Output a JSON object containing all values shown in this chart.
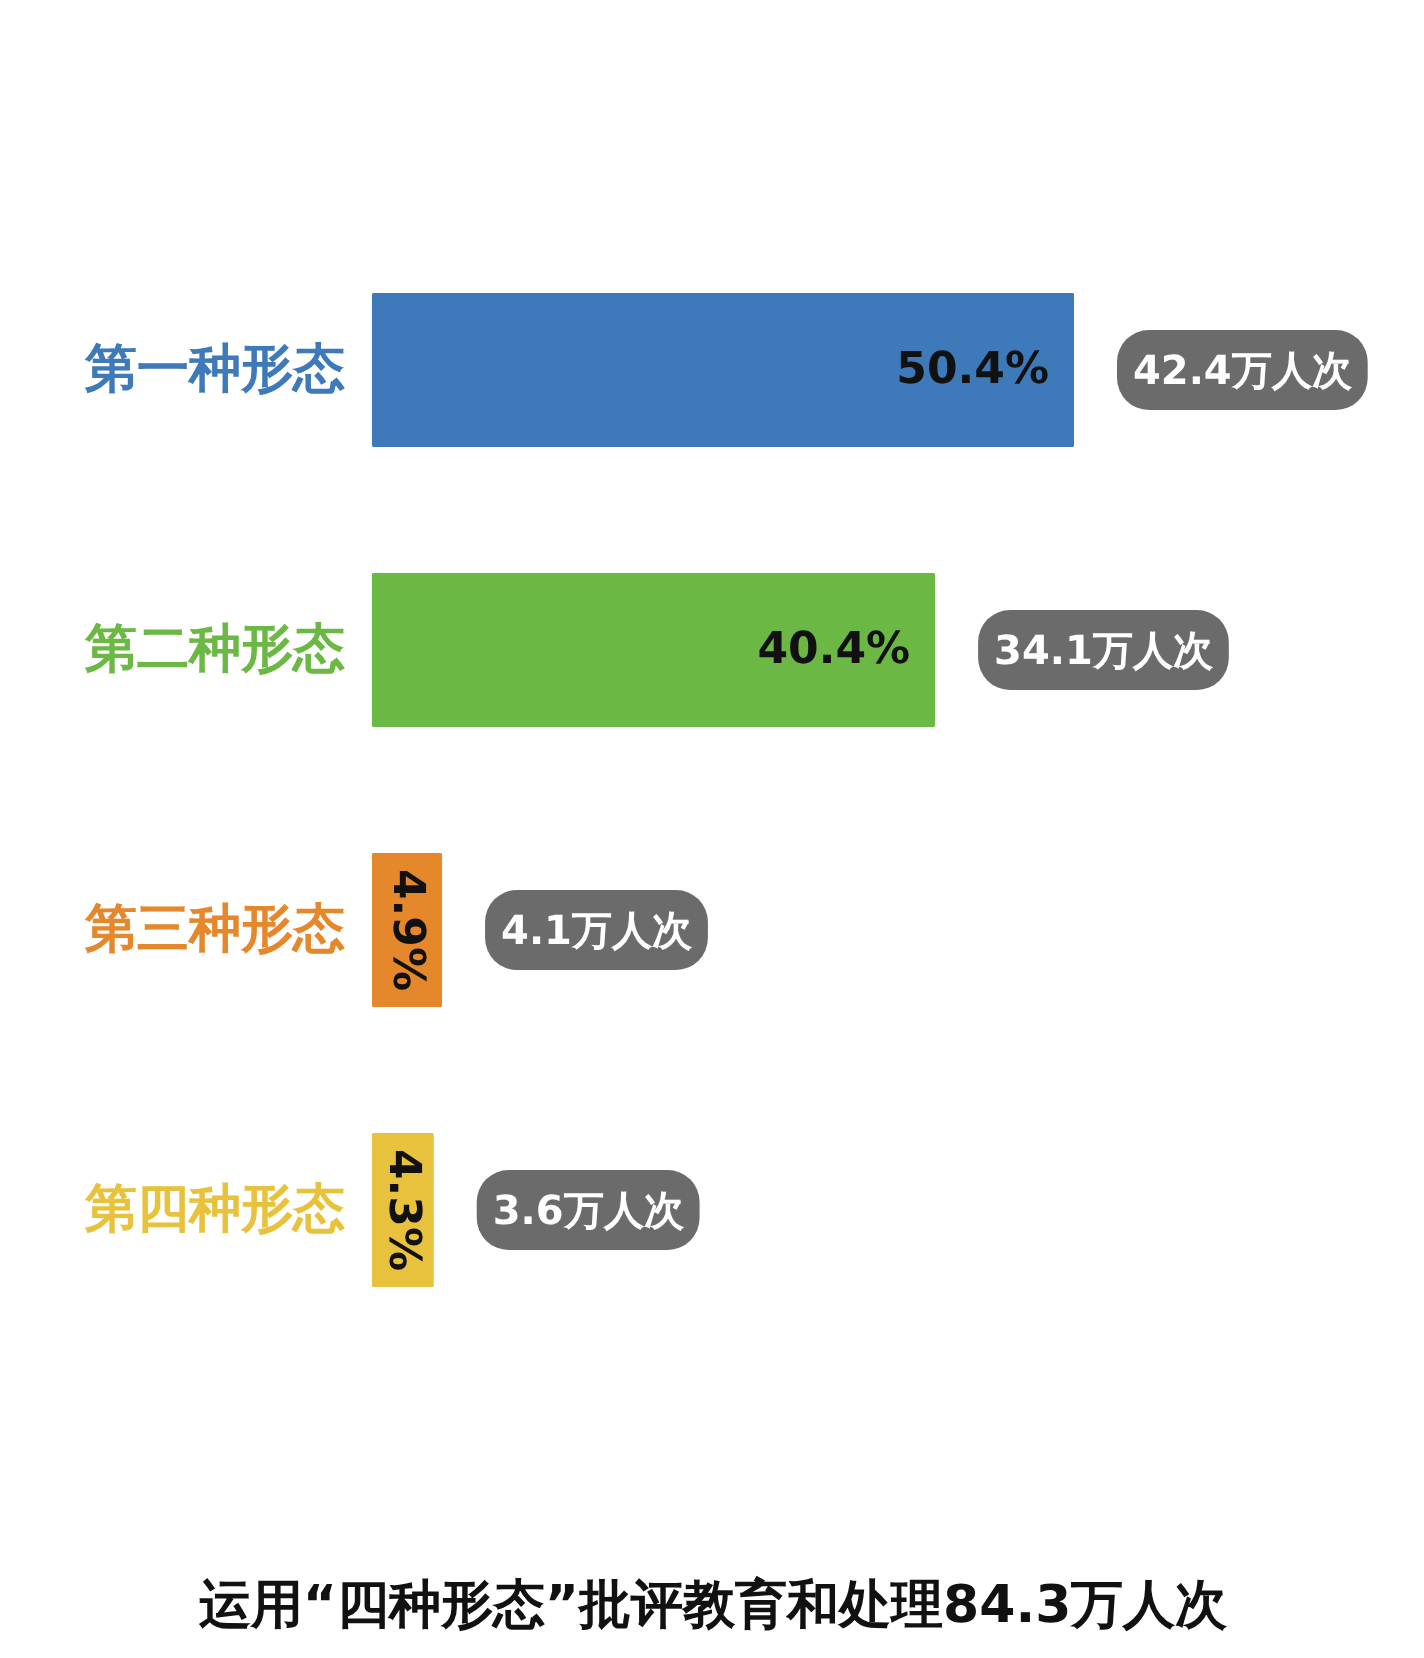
{
  "chart_data": {
    "type": "bar",
    "orientation": "horizontal",
    "title": "运用“四种形态”批评教育和处理84.3万人次",
    "categories": [
      "第一种形态",
      "第二种形态",
      "第三种形态",
      "第四种形态"
    ],
    "values": [
      50.4,
      40.4,
      4.9,
      4.3
    ],
    "colors": [
      "#3e79b9",
      "#6cb844",
      "#e5872b",
      "#e8c23c"
    ],
    "value_labels": [
      "50.4%",
      "40.4%",
      "4.9%",
      "4.3%"
    ],
    "annotations": [
      {
        "text": "42.4万人次",
        "x": 50.4,
        "y": "第一种形态"
      },
      {
        "text": "34.1万人次",
        "x": 40.4,
        "y": "第二种形态"
      },
      {
        "text": "4.1万人次",
        "x": 4.9,
        "y": "第三种形态"
      },
      {
        "text": "3.6万人次",
        "x": 4.3,
        "y": "第四种形态"
      }
    ]
  }
}
